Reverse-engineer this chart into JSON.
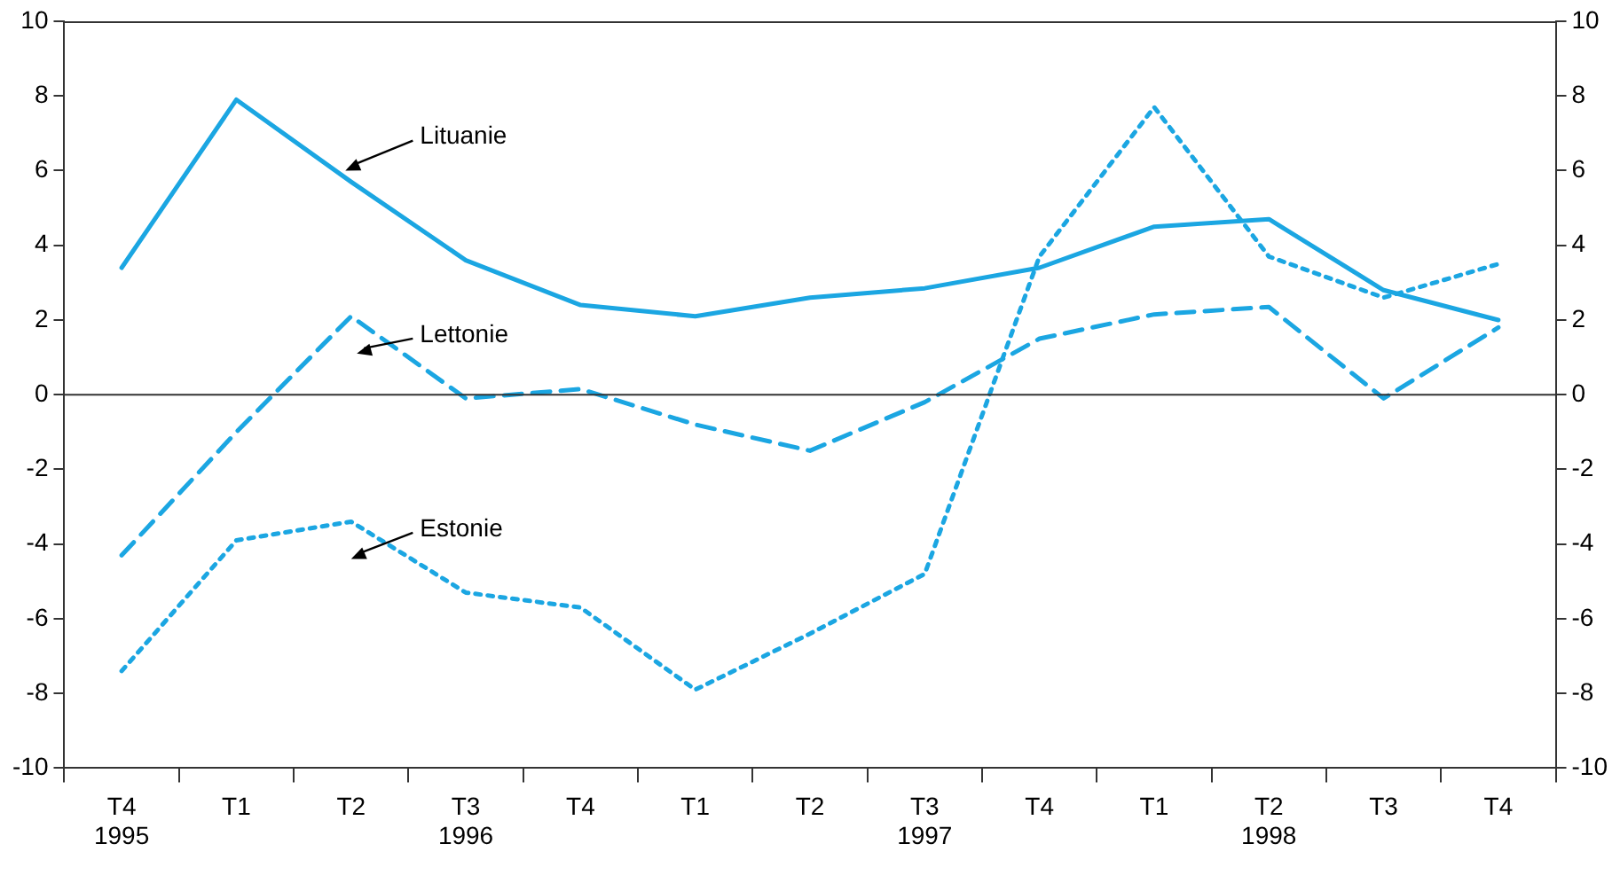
{
  "chart_data": {
    "type": "line",
    "categories": [
      "T4",
      "T1",
      "T2",
      "T3",
      "T4",
      "T1",
      "T2",
      "T3",
      "T4",
      "T1",
      "T2",
      "T3",
      "T4"
    ],
    "series": [
      {
        "name": "Lituanie",
        "color": "#1ba6e2",
        "line_style": "solid",
        "values": [
          3.4,
          7.9,
          5.7,
          3.6,
          2.4,
          2.1,
          2.6,
          2.85,
          3.4,
          4.5,
          4.7,
          2.8,
          2.0
        ]
      },
      {
        "name": "Lettonie",
        "color": "#1ba6e2",
        "line_style": "dashed",
        "values": [
          -4.3,
          -1.0,
          2.1,
          -0.1,
          0.15,
          -0.8,
          -1.5,
          -0.2,
          1.5,
          2.15,
          2.35,
          -0.1,
          1.8
        ]
      },
      {
        "name": "Estonie",
        "color": "#1ba6e2",
        "line_style": "dotted",
        "values": [
          -7.4,
          -3.9,
          -3.4,
          -5.3,
          -5.7,
          -7.9,
          -6.4,
          -4.8,
          3.7,
          7.7,
          3.7,
          2.6,
          3.5
        ]
      }
    ],
    "ylim": [
      -10,
      10
    ],
    "yticks": [
      -10,
      -8,
      -6,
      -4,
      -2,
      0,
      2,
      4,
      6,
      8,
      10
    ],
    "y2lim": [
      -10,
      10
    ],
    "y2ticks": [
      -10,
      -8,
      -6,
      -4,
      -2,
      0,
      2,
      4,
      6,
      8,
      10
    ],
    "ref_lines": [
      {
        "axis": "y",
        "value": 0,
        "color": "#333333",
        "line_style": "solid"
      }
    ],
    "annotations": [
      "1995",
      "1996",
      "1997",
      "1998"
    ],
    "grid": false,
    "legend": false,
    "marker": "none"
  }
}
